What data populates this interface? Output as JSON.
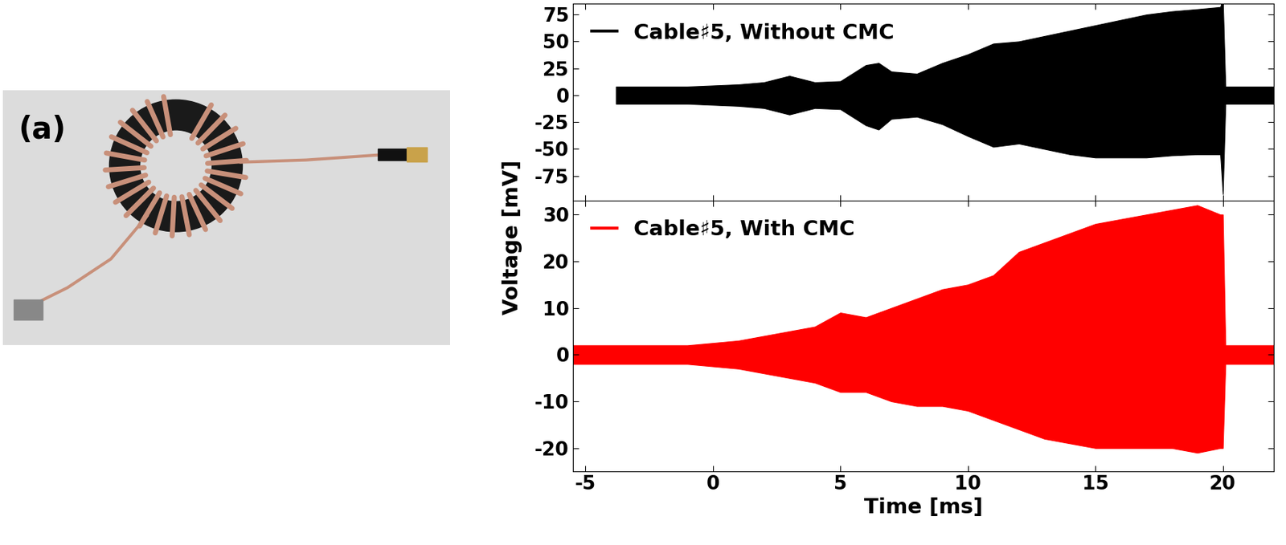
{
  "panel_label": "(a)",
  "shared": {
    "xlabel": "Time [ms]",
    "ylabel": "Voltage [mV]"
  },
  "chart_data": [
    {
      "type": "area",
      "x": [
        -3.8,
        -3,
        -2,
        -1,
        0,
        1,
        2,
        3,
        4,
        5,
        6,
        6.5,
        7,
        8,
        9,
        10,
        11,
        12,
        13,
        14,
        15,
        16,
        17,
        18,
        19,
        19.9,
        20,
        20.1,
        21,
        22
      ],
      "series": [
        {
          "name": "Cable♯5, Without CMC",
          "color": "#000000",
          "upper": [
            8,
            8,
            8,
            8,
            9,
            10,
            12,
            18,
            12,
            13,
            28,
            30,
            22,
            20,
            30,
            38,
            48,
            50,
            55,
            60,
            65,
            70,
            75,
            78,
            80,
            82,
            90,
            8,
            8,
            8
          ],
          "lower": [
            -8,
            -8,
            -8,
            -8,
            -9,
            -10,
            -12,
            -18,
            -12,
            -13,
            -28,
            -32,
            -22,
            -20,
            -27,
            -38,
            -48,
            -45,
            -50,
            -55,
            -58,
            -58,
            -58,
            -56,
            -55,
            -55,
            -92,
            -8,
            -8,
            -8
          ]
        }
      ],
      "xlim": [
        -5.5,
        22
      ],
      "xticks": [
        -5,
        0,
        5,
        10,
        15,
        20
      ],
      "ylim": [
        -98,
        85
      ],
      "yticks": [
        -75,
        -50,
        -25,
        0,
        25,
        50,
        75
      ],
      "legend": "upper left",
      "tick_labels": "y"
    },
    {
      "type": "area",
      "x": [
        -5.5,
        -4,
        -3,
        -2,
        -1,
        0,
        1,
        2,
        3,
        4,
        5,
        6,
        7,
        8,
        9,
        10,
        11,
        12,
        13,
        14,
        15,
        16,
        17,
        18,
        19,
        19.9,
        20,
        20.1,
        21,
        22
      ],
      "series": [
        {
          "name": "Cable♯5, With CMC",
          "color": "#ff0000",
          "upper": [
            2,
            2,
            2,
            2,
            2,
            2.5,
            3,
            4,
            5,
            6,
            9,
            8,
            10,
            12,
            14,
            15,
            17,
            22,
            24,
            26,
            28,
            29,
            30,
            31,
            32,
            30,
            30,
            2,
            2,
            2
          ],
          "lower": [
            -2,
            -2,
            -2,
            -2,
            -2,
            -2.5,
            -3,
            -4,
            -5,
            -6,
            -8,
            -8,
            -10,
            -11,
            -11,
            -12,
            -14,
            -16,
            -18,
            -19,
            -20,
            -20,
            -20,
            -20,
            -21,
            -20,
            -20,
            -2,
            -2,
            -2
          ]
        }
      ],
      "xlim": [
        -5.5,
        22
      ],
      "xticks": [
        -5,
        0,
        5,
        10,
        15,
        20
      ],
      "ylim": [
        -25,
        33
      ],
      "yticks": [
        -20,
        -10,
        0,
        10,
        20,
        30
      ],
      "legend": "upper left"
    }
  ]
}
